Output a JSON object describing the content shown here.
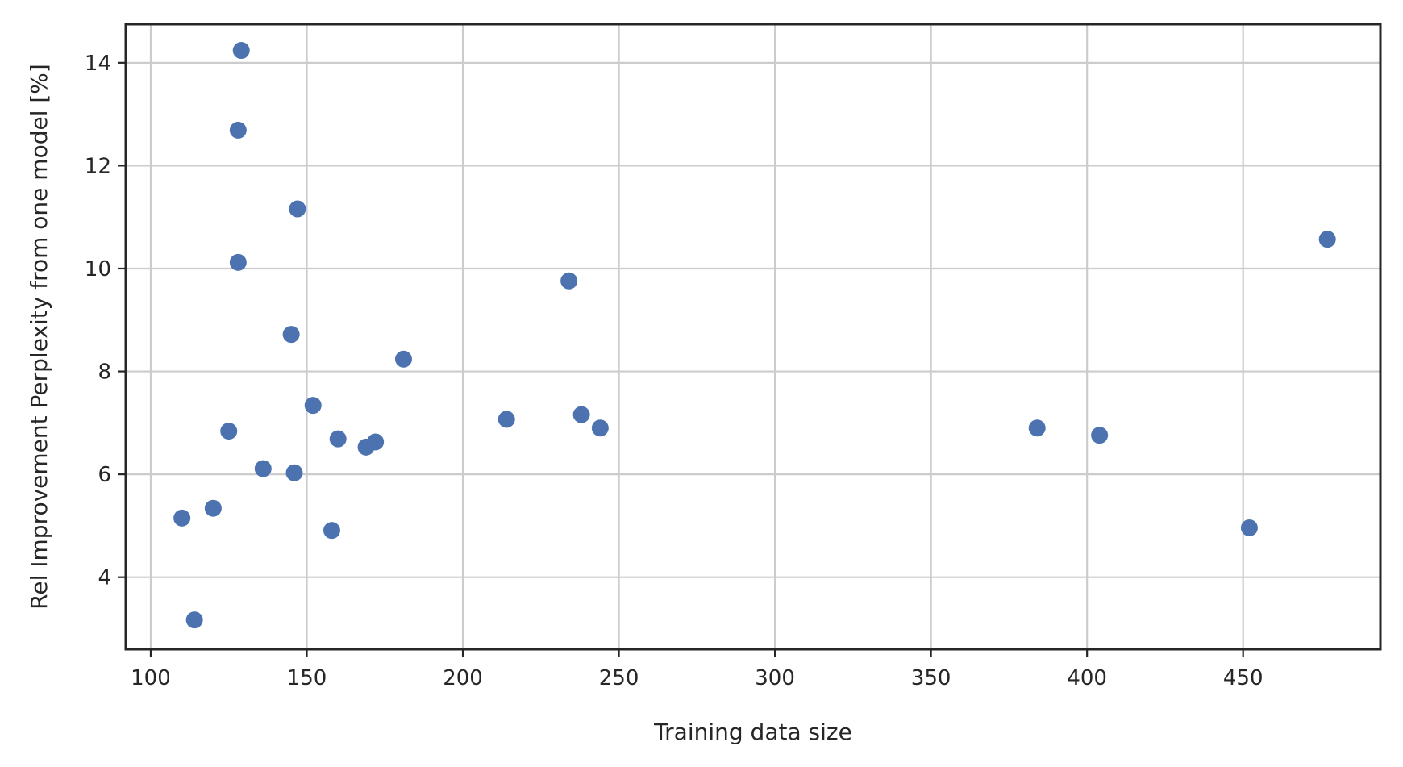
{
  "chart_data": {
    "type": "scatter",
    "title": "",
    "xlabel": "Training data size",
    "ylabel": "Rel Improvement Perplexity from one model [%]",
    "xlim": [
      92,
      494
    ],
    "ylim": [
      2.6,
      14.75
    ],
    "xticks": [
      100,
      150,
      200,
      250,
      300,
      350,
      400,
      450
    ],
    "yticks": [
      4,
      6,
      8,
      10,
      12,
      14
    ],
    "grid": true,
    "legend": "none",
    "color": "#4c72b0",
    "points": [
      {
        "x": 110,
        "y": 5.15
      },
      {
        "x": 114,
        "y": 3.17
      },
      {
        "x": 120,
        "y": 5.34
      },
      {
        "x": 125,
        "y": 6.84
      },
      {
        "x": 128,
        "y": 12.69
      },
      {
        "x": 128,
        "y": 10.12
      },
      {
        "x": 129,
        "y": 14.24
      },
      {
        "x": 136,
        "y": 6.11
      },
      {
        "x": 145,
        "y": 8.72
      },
      {
        "x": 146,
        "y": 6.03
      },
      {
        "x": 147,
        "y": 11.16
      },
      {
        "x": 152,
        "y": 7.34
      },
      {
        "x": 158,
        "y": 4.91
      },
      {
        "x": 160,
        "y": 6.69
      },
      {
        "x": 169,
        "y": 6.53
      },
      {
        "x": 172,
        "y": 6.63
      },
      {
        "x": 181,
        "y": 8.24
      },
      {
        "x": 214,
        "y": 7.07
      },
      {
        "x": 234,
        "y": 9.76
      },
      {
        "x": 238,
        "y": 7.16
      },
      {
        "x": 244,
        "y": 6.9
      },
      {
        "x": 384,
        "y": 6.9
      },
      {
        "x": 404,
        "y": 6.76
      },
      {
        "x": 452,
        "y": 4.96
      },
      {
        "x": 477,
        "y": 10.57
      }
    ]
  }
}
